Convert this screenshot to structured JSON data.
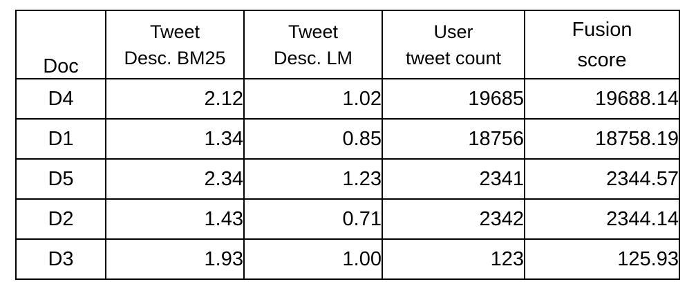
{
  "table": {
    "headers": {
      "doc": "Doc",
      "bm25_line1": "Tweet",
      "bm25_line2": "Desc. BM25",
      "lm_line1": "Tweet",
      "lm_line2": "Desc. LM",
      "count_line1": "User",
      "count_line2": "tweet count",
      "fusion_line1": "Fusion",
      "fusion_line2": "score"
    },
    "rows": [
      {
        "doc": "D4",
        "bm25": "2.12",
        "lm": "1.02",
        "count": "19685",
        "fusion": "19688.14"
      },
      {
        "doc": "D1",
        "bm25": "1.34",
        "lm": "0.85",
        "count": "18756",
        "fusion": "18758.19"
      },
      {
        "doc": "D5",
        "bm25": "2.34",
        "lm": "1.23",
        "count": "2341",
        "fusion": "2344.57"
      },
      {
        "doc": "D2",
        "bm25": "1.43",
        "lm": "0.71",
        "count": "2342",
        "fusion": "2344.14"
      },
      {
        "doc": "D3",
        "bm25": "1.93",
        "lm": "1.00",
        "count": "123",
        "fusion": "125.93"
      }
    ]
  }
}
